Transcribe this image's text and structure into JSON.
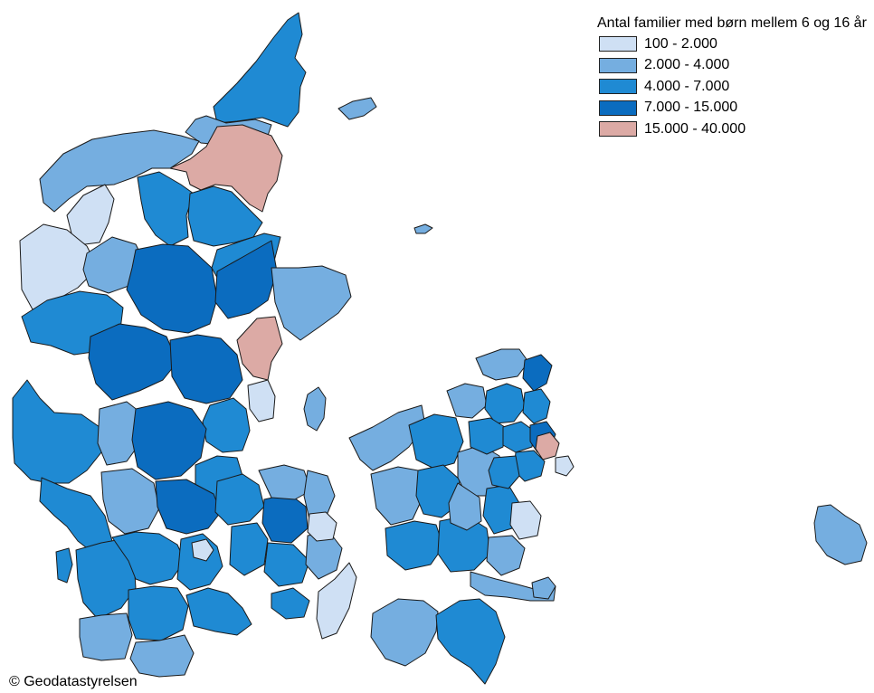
{
  "legend": {
    "title": "Antal familier med børn mellem 6 og 16 år",
    "classes": [
      {
        "label": "100 - 2.000",
        "color": "#cfe0f4"
      },
      {
        "label": "2.000 - 4.000",
        "color": "#75aee0"
      },
      {
        "label": "4.000 - 7.000",
        "color": "#1f8ad3"
      },
      {
        "label": "7.000 - 15.000",
        "color": "#0b6cbf"
      },
      {
        "label": "15.000 - 40.000",
        "color": "#dcaaa5"
      }
    ]
  },
  "credit": "© Geodatastyrelsen",
  "colors": {
    "border": "#1a1a1a",
    "water": "#ffffff"
  }
}
